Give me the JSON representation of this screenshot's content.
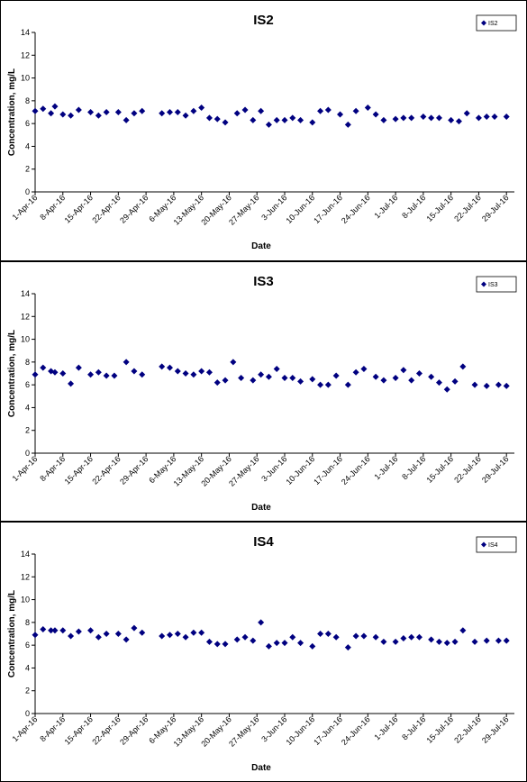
{
  "chart_data": [
    {
      "type": "scatter",
      "title": "IS2",
      "xlabel": "Date",
      "ylabel": "Concentration, mg/L",
      "ylim": [
        0,
        14
      ],
      "yticks": [
        0,
        2,
        4,
        6,
        8,
        10,
        12,
        14
      ],
      "xlim": [
        "2016-04-01",
        "2016-07-31"
      ],
      "xtick_dates": [
        "2016-04-01",
        "2016-04-08",
        "2016-04-15",
        "2016-04-22",
        "2016-04-29",
        "2016-05-06",
        "2016-05-13",
        "2016-05-20",
        "2016-05-27",
        "2016-06-03",
        "2016-06-10",
        "2016-06-17",
        "2016-06-24",
        "2016-07-01",
        "2016-07-08",
        "2016-07-15",
        "2016-07-22",
        "2016-07-29"
      ],
      "xtick_labels": [
        "1-Apr-16",
        "8-Apr-16",
        "15-Apr-16",
        "22-Apr-16",
        "29-Apr-16",
        "6-May-16",
        "13-May-16",
        "20-May-16",
        "27-May-16",
        "3-Jun-16",
        "10-Jun-16",
        "17-Jun-16",
        "24-Jun-16",
        "1-Jul-16",
        "8-Jul-16",
        "15-Jul-16",
        "22-Jul-16",
        "29-Jul-16"
      ],
      "grid": false,
      "legend_position": "top-right",
      "marker_color": "#000080",
      "series": [
        {
          "name": "IS2",
          "x": [
            "2016-04-01",
            "2016-04-03",
            "2016-04-05",
            "2016-04-06",
            "2016-04-08",
            "2016-04-10",
            "2016-04-12",
            "2016-04-15",
            "2016-04-17",
            "2016-04-19",
            "2016-04-22",
            "2016-04-24",
            "2016-04-26",
            "2016-04-28",
            "2016-05-03",
            "2016-05-05",
            "2016-05-07",
            "2016-05-09",
            "2016-05-11",
            "2016-05-13",
            "2016-05-15",
            "2016-05-17",
            "2016-05-19",
            "2016-05-22",
            "2016-05-24",
            "2016-05-26",
            "2016-05-28",
            "2016-05-30",
            "2016-06-01",
            "2016-06-03",
            "2016-06-05",
            "2016-06-07",
            "2016-06-10",
            "2016-06-12",
            "2016-06-14",
            "2016-06-17",
            "2016-06-19",
            "2016-06-21",
            "2016-06-24",
            "2016-06-26",
            "2016-06-28",
            "2016-07-01",
            "2016-07-03",
            "2016-07-05",
            "2016-07-08",
            "2016-07-10",
            "2016-07-12",
            "2016-07-15",
            "2016-07-17",
            "2016-07-19",
            "2016-07-22",
            "2016-07-24",
            "2016-07-26",
            "2016-07-29"
          ],
          "y": [
            7.1,
            7.3,
            6.9,
            7.5,
            6.8,
            6.7,
            7.2,
            7.0,
            6.7,
            7.0,
            7.0,
            6.3,
            6.9,
            7.1,
            6.9,
            7.0,
            7.0,
            6.7,
            7.1,
            7.4,
            6.5,
            6.4,
            6.1,
            6.9,
            7.2,
            6.3,
            7.1,
            5.9,
            6.3,
            6.3,
            6.5,
            6.3,
            6.1,
            7.1,
            7.2,
            6.8,
            5.9,
            7.1,
            7.4,
            6.8,
            6.3,
            6.4,
            6.5,
            6.5,
            6.6,
            6.5,
            6.5,
            6.3,
            6.2,
            6.9,
            6.5,
            6.6,
            6.6,
            6.6
          ]
        }
      ]
    },
    {
      "type": "scatter",
      "title": "IS3",
      "xlabel": "Date",
      "ylabel": "Concentration, mg/L",
      "ylim": [
        0,
        14
      ],
      "yticks": [
        0,
        2,
        4,
        6,
        8,
        10,
        12,
        14
      ],
      "xlim": [
        "2016-04-01",
        "2016-07-31"
      ],
      "xtick_dates": [
        "2016-04-01",
        "2016-04-08",
        "2016-04-15",
        "2016-04-22",
        "2016-04-29",
        "2016-05-06",
        "2016-05-13",
        "2016-05-20",
        "2016-05-27",
        "2016-06-03",
        "2016-06-10",
        "2016-06-17",
        "2016-06-24",
        "2016-07-01",
        "2016-07-08",
        "2016-07-15",
        "2016-07-22",
        "2016-07-29"
      ],
      "xtick_labels": [
        "1-Apr-16",
        "8-Apr-16",
        "15-Apr-16",
        "22-Apr-16",
        "29-Apr-16",
        "6-May-16",
        "13-May-16",
        "20-May-16",
        "27-May-16",
        "3-Jun-16",
        "10-Jun-16",
        "17-Jun-16",
        "24-Jun-16",
        "1-Jul-16",
        "8-Jul-16",
        "15-Jul-16",
        "22-Jul-16",
        "29-Jul-16"
      ],
      "grid": false,
      "legend_position": "top-right",
      "marker_color": "#000080",
      "series": [
        {
          "name": "IS3",
          "x": [
            "2016-04-01",
            "2016-04-03",
            "2016-04-05",
            "2016-04-06",
            "2016-04-08",
            "2016-04-10",
            "2016-04-12",
            "2016-04-15",
            "2016-04-17",
            "2016-04-19",
            "2016-04-21",
            "2016-04-24",
            "2016-04-26",
            "2016-04-28",
            "2016-05-03",
            "2016-05-05",
            "2016-05-07",
            "2016-05-09",
            "2016-05-11",
            "2016-05-13",
            "2016-05-15",
            "2016-05-17",
            "2016-05-19",
            "2016-05-21",
            "2016-05-23",
            "2016-05-26",
            "2016-05-28",
            "2016-05-30",
            "2016-06-01",
            "2016-06-03",
            "2016-06-05",
            "2016-06-07",
            "2016-06-10",
            "2016-06-12",
            "2016-06-14",
            "2016-06-16",
            "2016-06-19",
            "2016-06-21",
            "2016-06-23",
            "2016-06-26",
            "2016-06-28",
            "2016-07-01",
            "2016-07-03",
            "2016-07-05",
            "2016-07-07",
            "2016-07-10",
            "2016-07-12",
            "2016-07-14",
            "2016-07-16",
            "2016-07-18",
            "2016-07-21",
            "2016-07-24",
            "2016-07-27",
            "2016-07-29"
          ],
          "y": [
            6.9,
            7.5,
            7.2,
            7.1,
            7.0,
            6.1,
            7.5,
            6.9,
            7.1,
            6.8,
            6.8,
            8.0,
            7.2,
            6.9,
            7.6,
            7.5,
            7.2,
            7.0,
            6.9,
            7.2,
            7.1,
            6.2,
            6.4,
            8.0,
            6.6,
            6.4,
            6.9,
            6.7,
            7.4,
            6.6,
            6.6,
            6.3,
            6.5,
            6.0,
            6.0,
            6.8,
            6.0,
            7.1,
            7.4,
            6.7,
            6.4,
            6.6,
            7.3,
            6.4,
            7.0,
            6.7,
            6.2,
            5.6,
            6.3,
            7.6,
            6.0,
            5.9,
            6.0,
            5.9
          ]
        }
      ]
    },
    {
      "type": "scatter",
      "title": "IS4",
      "xlabel": "Date",
      "ylabel": "Concentration, mg/L",
      "ylim": [
        0,
        14
      ],
      "yticks": [
        0,
        2,
        4,
        6,
        8,
        10,
        12,
        14
      ],
      "xlim": [
        "2016-04-01",
        "2016-07-31"
      ],
      "xtick_dates": [
        "2016-04-01",
        "2016-04-08",
        "2016-04-15",
        "2016-04-22",
        "2016-04-29",
        "2016-05-06",
        "2016-05-13",
        "2016-05-20",
        "2016-05-27",
        "2016-06-03",
        "2016-06-10",
        "2016-06-17",
        "2016-06-24",
        "2016-07-01",
        "2016-07-08",
        "2016-07-15",
        "2016-07-22",
        "2016-07-29"
      ],
      "xtick_labels": [
        "1-Apr-16",
        "8-Apr-16",
        "15-Apr-16",
        "22-Apr-16",
        "29-Apr-16",
        "6-May-16",
        "13-May-16",
        "20-May-16",
        "27-May-16",
        "3-Jun-16",
        "10-Jun-16",
        "17-Jun-16",
        "24-Jun-16",
        "1-Jul-16",
        "8-Jul-16",
        "15-Jul-16",
        "22-Jul-16",
        "29-Jul-16"
      ],
      "grid": false,
      "legend_position": "top-right",
      "marker_color": "#000080",
      "series": [
        {
          "name": "IS4",
          "x": [
            "2016-04-01",
            "2016-04-03",
            "2016-04-05",
            "2016-04-06",
            "2016-04-08",
            "2016-04-10",
            "2016-04-12",
            "2016-04-15",
            "2016-04-17",
            "2016-04-19",
            "2016-04-22",
            "2016-04-24",
            "2016-04-26",
            "2016-04-28",
            "2016-05-03",
            "2016-05-05",
            "2016-05-07",
            "2016-05-09",
            "2016-05-11",
            "2016-05-13",
            "2016-05-15",
            "2016-05-17",
            "2016-05-19",
            "2016-05-22",
            "2016-05-24",
            "2016-05-26",
            "2016-05-28",
            "2016-05-30",
            "2016-06-01",
            "2016-06-03",
            "2016-06-05",
            "2016-06-07",
            "2016-06-10",
            "2016-06-12",
            "2016-06-14",
            "2016-06-16",
            "2016-06-19",
            "2016-06-21",
            "2016-06-23",
            "2016-06-26",
            "2016-06-28",
            "2016-07-01",
            "2016-07-03",
            "2016-07-05",
            "2016-07-07",
            "2016-07-10",
            "2016-07-12",
            "2016-07-14",
            "2016-07-16",
            "2016-07-18",
            "2016-07-21",
            "2016-07-24",
            "2016-07-27",
            "2016-07-29"
          ],
          "y": [
            6.9,
            7.4,
            7.3,
            7.3,
            7.3,
            6.8,
            7.2,
            7.3,
            6.7,
            7.0,
            7.0,
            6.5,
            7.5,
            7.1,
            6.8,
            6.9,
            7.0,
            6.7,
            7.1,
            7.1,
            6.3,
            6.1,
            6.1,
            6.5,
            6.7,
            6.4,
            8.0,
            5.9,
            6.2,
            6.2,
            6.7,
            6.2,
            5.9,
            7.0,
            7.0,
            6.7,
            5.8,
            6.8,
            6.8,
            6.7,
            6.3,
            6.3,
            6.6,
            6.7,
            6.7,
            6.5,
            6.3,
            6.2,
            6.3,
            7.3,
            6.3,
            6.4,
            6.4,
            6.4
          ]
        }
      ]
    }
  ]
}
